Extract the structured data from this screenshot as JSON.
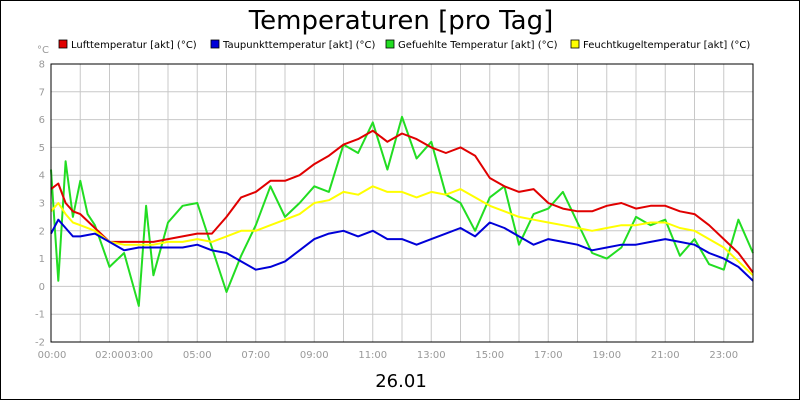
{
  "chart_data": {
    "type": "line",
    "title": "Temperaturen [pro Tag]",
    "ylabel": "°C",
    "xlabel": "26.01",
    "ylim": [
      -2,
      8
    ],
    "xlim": [
      "00:00",
      "24:00"
    ],
    "grid": true,
    "legend_position": "top",
    "y_ticks": [
      "-2",
      "-1",
      "0",
      "1",
      "2",
      "3",
      "4",
      "5",
      "6",
      "7",
      "8"
    ],
    "x_ticks": [
      {
        "label": "00:00",
        "hour": 0
      },
      {
        "label": "02:00",
        "hour": 2
      },
      {
        "label": "03:00",
        "hour": 3
      },
      {
        "label": "05:00",
        "hour": 5
      },
      {
        "label": "07:00",
        "hour": 7
      },
      {
        "label": "09:00",
        "hour": 9
      },
      {
        "label": "11:00",
        "hour": 11
      },
      {
        "label": "13:00",
        "hour": 13
      },
      {
        "label": "15:00",
        "hour": 15
      },
      {
        "label": "17:00",
        "hour": 17
      },
      {
        "label": "19:00",
        "hour": 19
      },
      {
        "label": "21:00",
        "hour": 21
      },
      {
        "label": "23:00",
        "hour": 23
      }
    ],
    "series": [
      {
        "name": "Lufttemperatur [akt] (°C)",
        "color": "#e00000",
        "x": [
          0,
          0.25,
          0.5,
          0.75,
          1,
          1.5,
          2,
          2.5,
          3,
          3.5,
          4,
          4.5,
          5,
          5.5,
          6,
          6.5,
          7,
          7.5,
          8,
          8.5,
          9,
          9.5,
          10,
          10.5,
          11,
          11.5,
          12,
          12.5,
          13,
          13.5,
          14,
          14.5,
          15,
          15.5,
          16,
          16.5,
          17,
          17.5,
          18,
          18.5,
          19,
          19.5,
          20,
          20.5,
          21,
          21.5,
          22,
          22.5,
          23,
          23.5,
          24
        ],
        "values": [
          3.5,
          3.7,
          3.0,
          2.7,
          2.6,
          2.1,
          1.6,
          1.6,
          1.6,
          1.6,
          1.7,
          1.8,
          1.9,
          1.9,
          2.5,
          3.2,
          3.4,
          3.8,
          3.8,
          4.0,
          4.4,
          4.7,
          5.1,
          5.3,
          5.6,
          5.2,
          5.5,
          5.3,
          5.0,
          4.8,
          5.0,
          4.7,
          3.9,
          3.6,
          3.4,
          3.5,
          3.0,
          2.8,
          2.7,
          2.7,
          2.9,
          3.0,
          2.8,
          2.9,
          2.9,
          2.7,
          2.6,
          2.2,
          1.7,
          1.2,
          0.5
        ]
      },
      {
        "name": "Taupunkttemperatur [akt] (°C)",
        "color": "#0000d8",
        "x": [
          0,
          0.25,
          0.5,
          0.75,
          1,
          1.5,
          2,
          2.5,
          3,
          3.5,
          4,
          4.5,
          5,
          5.5,
          6,
          6.5,
          7,
          7.5,
          8,
          8.5,
          9,
          9.5,
          10,
          10.5,
          11,
          11.5,
          12,
          12.5,
          13,
          13.5,
          14,
          14.5,
          15,
          15.5,
          16,
          16.5,
          17,
          17.5,
          18,
          18.5,
          19,
          19.5,
          20,
          20.5,
          21,
          21.5,
          22,
          22.5,
          23,
          23.5,
          24
        ],
        "values": [
          1.9,
          2.4,
          2.1,
          1.8,
          1.8,
          1.9,
          1.6,
          1.3,
          1.4,
          1.4,
          1.4,
          1.4,
          1.5,
          1.3,
          1.2,
          0.9,
          0.6,
          0.7,
          0.9,
          1.3,
          1.7,
          1.9,
          2.0,
          1.8,
          2.0,
          1.7,
          1.7,
          1.5,
          1.7,
          1.9,
          2.1,
          1.8,
          2.3,
          2.1,
          1.8,
          1.5,
          1.7,
          1.6,
          1.5,
          1.3,
          1.4,
          1.5,
          1.5,
          1.6,
          1.7,
          1.6,
          1.5,
          1.2,
          1.0,
          0.7,
          0.2
        ]
      },
      {
        "name": "Gefuehlte Temperatur [akt] (°C)",
        "color": "#22dd22",
        "x": [
          0,
          0.25,
          0.5,
          0.75,
          1,
          1.25,
          1.5,
          2,
          2.5,
          3,
          3.25,
          3.5,
          4,
          4.5,
          5,
          5.5,
          6,
          6.5,
          7,
          7.5,
          8,
          8.5,
          9,
          9.5,
          10,
          10.5,
          11,
          11.5,
          12,
          12.5,
          13,
          13.5,
          14,
          14.5,
          15,
          15.5,
          16,
          16.5,
          17,
          17.5,
          18,
          18.5,
          19,
          19.5,
          20,
          20.5,
          21,
          21.5,
          22,
          22.5,
          23,
          23.5,
          24
        ],
        "values": [
          4.2,
          0.2,
          4.5,
          2.5,
          3.8,
          2.6,
          2.2,
          0.7,
          1.2,
          -0.7,
          2.9,
          0.4,
          2.3,
          2.9,
          3.0,
          1.4,
          -0.2,
          1.1,
          2.2,
          3.6,
          2.5,
          3.0,
          3.6,
          3.4,
          5.1,
          4.8,
          5.9,
          4.2,
          6.1,
          4.6,
          5.2,
          3.3,
          3.0,
          2.0,
          3.2,
          3.6,
          1.5,
          2.6,
          2.8,
          3.4,
          2.3,
          1.2,
          1.0,
          1.4,
          2.5,
          2.2,
          2.4,
          1.1,
          1.7,
          0.8,
          0.6,
          2.4,
          1.2
        ]
      },
      {
        "name": "Feuchtkugeltemperatur [akt] (°C)",
        "color": "#ffff00",
        "x": [
          0,
          0.25,
          0.5,
          0.75,
          1,
          1.5,
          2,
          2.5,
          3,
          3.5,
          4,
          4.5,
          5,
          5.5,
          6,
          6.5,
          7,
          7.5,
          8,
          8.5,
          9,
          9.5,
          10,
          10.5,
          11,
          11.5,
          12,
          12.5,
          13,
          13.5,
          14,
          14.5,
          15,
          15.5,
          16,
          16.5,
          17,
          17.5,
          18,
          18.5,
          19,
          19.5,
          20,
          20.5,
          21,
          21.5,
          22,
          22.5,
          23,
          23.5,
          24
        ],
        "values": [
          2.7,
          3.0,
          2.6,
          2.3,
          2.2,
          2.0,
          1.6,
          1.5,
          1.5,
          1.5,
          1.6,
          1.6,
          1.7,
          1.6,
          1.8,
          2.0,
          2.0,
          2.2,
          2.4,
          2.6,
          3.0,
          3.1,
          3.4,
          3.3,
          3.6,
          3.4,
          3.4,
          3.2,
          3.4,
          3.3,
          3.5,
          3.2,
          2.9,
          2.7,
          2.5,
          2.4,
          2.3,
          2.2,
          2.1,
          2.0,
          2.1,
          2.2,
          2.2,
          2.3,
          2.3,
          2.1,
          2.0,
          1.7,
          1.4,
          0.9,
          0.4
        ]
      }
    ]
  }
}
